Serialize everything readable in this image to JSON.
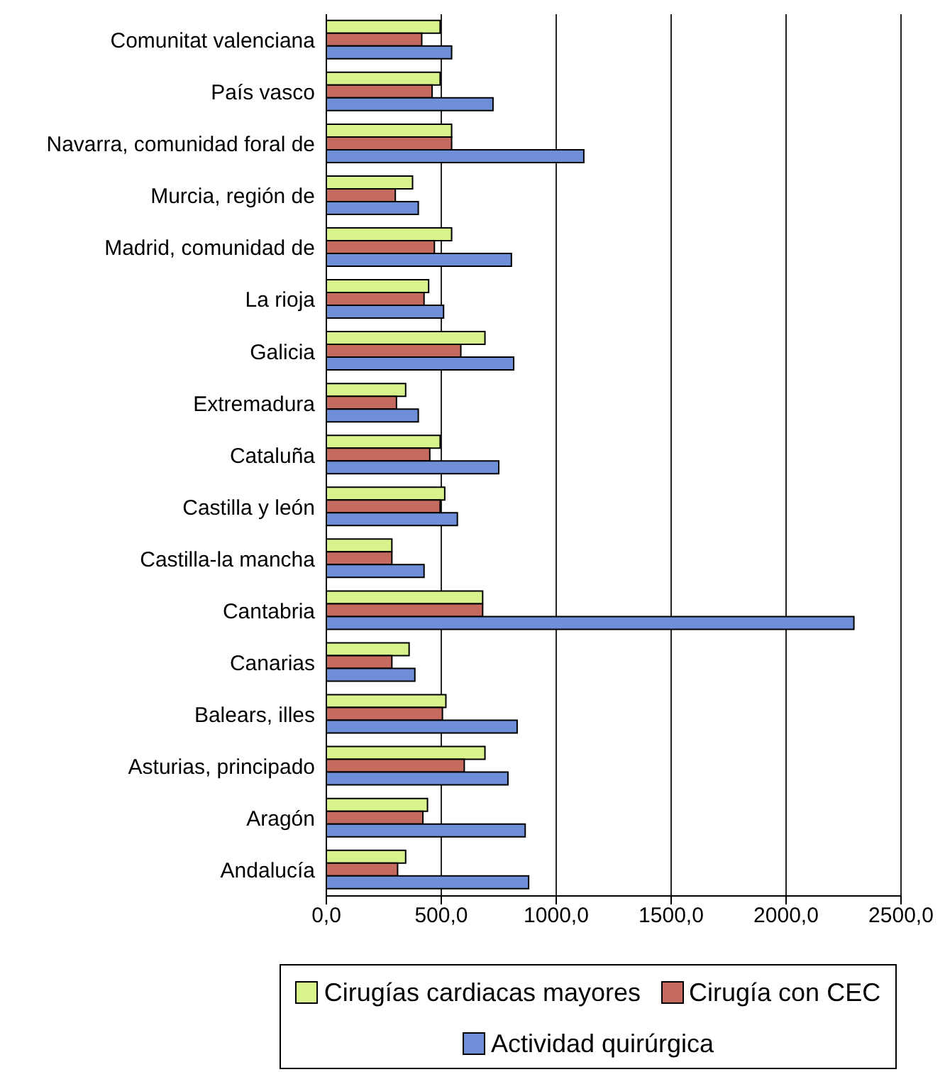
{
  "chart_data": {
    "type": "bar",
    "orientation": "horizontal",
    "categories": [
      "Comunitat valenciana",
      "País vasco",
      "Navarra, comunidad foral de",
      "Murcia, región de",
      "Madrid, comunidad de",
      "La rioja",
      "Galicia",
      "Extremadura",
      "Cataluña",
      "Castilla y león",
      "Castilla-la mancha",
      "Cantabria",
      "Canarias",
      "Balears, illes",
      "Asturias, principado",
      "Aragón",
      "Andalucía"
    ],
    "series": [
      {
        "name": "Cirugías cardiacas mayores",
        "color": "#d8f28c",
        "values": [
          495,
          495,
          545,
          375,
          545,
          445,
          690,
          345,
          495,
          515,
          285,
          680,
          360,
          520,
          690,
          440,
          345
        ]
      },
      {
        "name": "Cirugía con CEC",
        "color": "#c46a5f",
        "values": [
          415,
          460,
          545,
          300,
          470,
          425,
          585,
          305,
          450,
          495,
          285,
          680,
          285,
          505,
          600,
          420,
          310
        ]
      },
      {
        "name": "Actividad quirúrgica",
        "color": "#6e8ed8",
        "values": [
          545,
          725,
          1120,
          400,
          805,
          510,
          815,
          400,
          750,
          570,
          425,
          2295,
          385,
          830,
          790,
          865,
          880
        ]
      }
    ],
    "xlim": [
      0,
      2500
    ],
    "xticks": [
      {
        "value": 0,
        "label": "0,0"
      },
      {
        "value": 500,
        "label": "500,0"
      },
      {
        "value": 1000,
        "label": "1000,0"
      },
      {
        "value": 1500,
        "label": "1500,0"
      },
      {
        "value": 2000,
        "label": "2000,0"
      },
      {
        "value": 2500,
        "label": "2500,0"
      }
    ],
    "grid": "x",
    "legend": "bottom"
  }
}
